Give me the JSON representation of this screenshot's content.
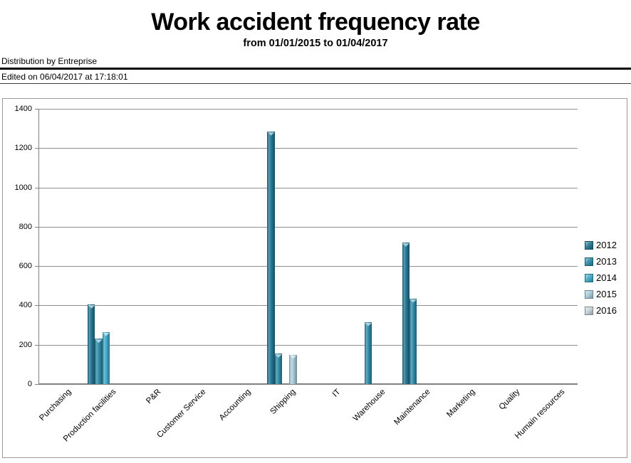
{
  "header": {
    "title": "Work accident frequency rate",
    "subtitle": "from 01/01/2015 to 01/04/2017",
    "distribution": "Distribution by Entreprise",
    "edited": "Edited on 06/04/2017 at 17:18:01"
  },
  "chart_data": {
    "type": "bar",
    "title": "Work accident frequency rate",
    "subtitle": "from 01/01/2015 to 01/04/2017",
    "categories": [
      "Purchasing",
      "Production facilities",
      "P&R",
      "Customer Service",
      "Accounting",
      "Shipping",
      "IT",
      "Warehouse",
      "Maintenance",
      "Marketing",
      "Quality",
      "Humain resources"
    ],
    "series": [
      {
        "name": "2012",
        "color": "#1e7291",
        "values": [
          0,
          405,
          0,
          0,
          0,
          1285,
          0,
          0,
          720,
          0,
          0,
          0
        ]
      },
      {
        "name": "2013",
        "color": "#2a89a6",
        "values": [
          0,
          230,
          0,
          0,
          0,
          155,
          0,
          315,
          435,
          0,
          0,
          0
        ]
      },
      {
        "name": "2014",
        "color": "#3ba7c7",
        "values": [
          0,
          265,
          0,
          0,
          0,
          0,
          0,
          0,
          0,
          0,
          0,
          0
        ]
      },
      {
        "name": "2015",
        "color": "#a6cbda",
        "values": [
          0,
          0,
          0,
          0,
          0,
          150,
          0,
          0,
          0,
          0,
          0,
          0
        ]
      },
      {
        "name": "2016",
        "color": "#c4d0d8",
        "values": [
          0,
          0,
          0,
          0,
          0,
          0,
          0,
          0,
          0,
          0,
          0,
          0
        ]
      }
    ],
    "ylim": [
      0,
      1400
    ],
    "yticks": [
      0,
      200,
      400,
      600,
      800,
      1000,
      1200,
      1400
    ],
    "grid": true,
    "legend_position": "right",
    "ylabel": "",
    "xlabel": ""
  }
}
